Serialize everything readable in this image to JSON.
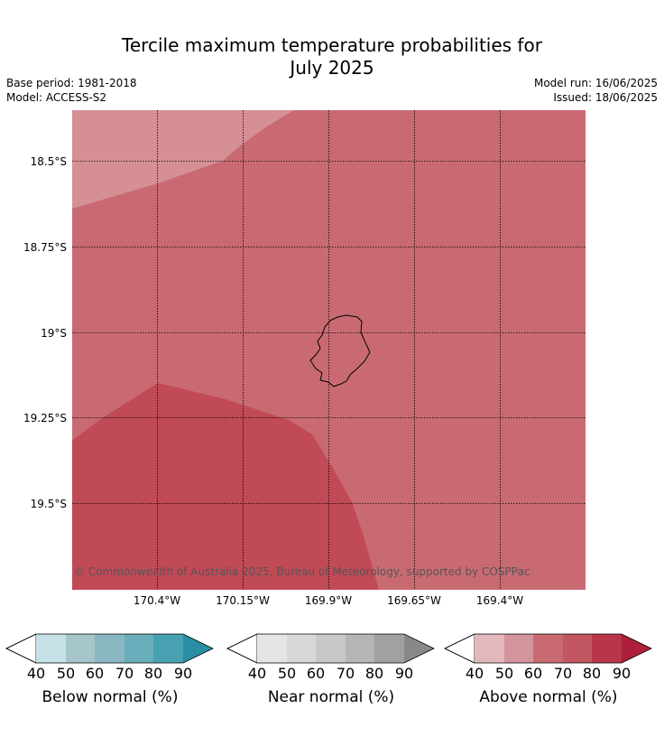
{
  "title_line1": "Tercile maximum temperature probabilities for",
  "title_line2": "July 2025",
  "base_period": "Base period: 1981-2018",
  "model": "Model: ACCESS-S2",
  "model_run": "Model run: 16/06/2025",
  "issued": "Issued: 18/06/2025",
  "lat_labels": [
    "18.5°S",
    "18.75°S",
    "19°S",
    "19.25°S",
    "19.5°S"
  ],
  "lon_labels": [
    "170.4°W",
    "170.15°W",
    "169.9°W",
    "169.65°W",
    "169.4°W"
  ],
  "copyright": "© Commonwealth of Australia 2025, Bureau of Meteorology, supported by COSPPac",
  "colors": {
    "above_50_60": "#d58f95",
    "above_60_70": "#c96a72",
    "above_70_80": "#c04a56"
  },
  "colorbars": [
    {
      "label": "Below normal (%)",
      "ticks": [
        "40",
        "50",
        "60",
        "70",
        "80",
        "90"
      ],
      "colors": [
        "#c6e1e8",
        "#a6c6cb",
        "#89b8c3",
        "#6aaebb",
        "#48a1b1",
        "#2a8fa3"
      ]
    },
    {
      "label": "Near normal (%)",
      "ticks": [
        "40",
        "50",
        "60",
        "70",
        "80",
        "90"
      ],
      "colors": [
        "#e5e5e5",
        "#d8d8d8",
        "#c8c8c8",
        "#b5b5b5",
        "#a1a1a1",
        "#888888"
      ]
    },
    {
      "label": "Above normal (%)",
      "ticks": [
        "40",
        "50",
        "60",
        "70",
        "80",
        "90"
      ],
      "colors": [
        "#e2b8bd",
        "#d4949b",
        "#c96a72",
        "#c25762",
        "#b8364a",
        "#ad1f3a"
      ]
    }
  ]
}
